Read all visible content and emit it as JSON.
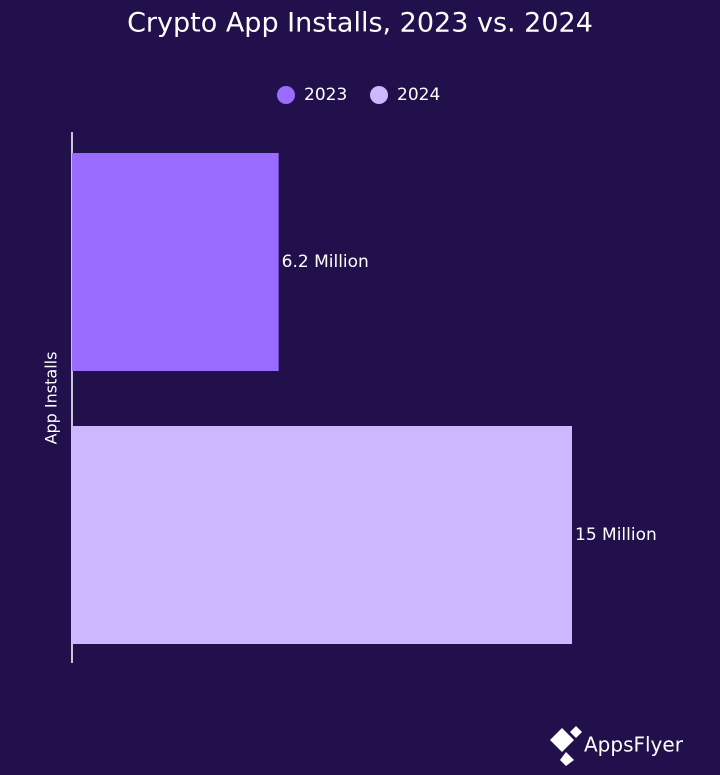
{
  "chart_data": {
    "type": "bar",
    "orientation": "horizontal",
    "title": "Crypto App Installs, 2023 vs. 2024",
    "y_label": "App Installs",
    "categories": [
      null
    ],
    "series": [
      {
        "name": "2023",
        "color": "#9a6bff",
        "values": [
          6.2
        ],
        "value_labels": [
          "6.2 Million"
        ]
      },
      {
        "name": "2024",
        "color": "#cdb8ff",
        "values": [
          15
        ],
        "value_labels": [
          "15 Million"
        ]
      }
    ],
    "legend": "top"
  },
  "logo": "AppsFlyer"
}
